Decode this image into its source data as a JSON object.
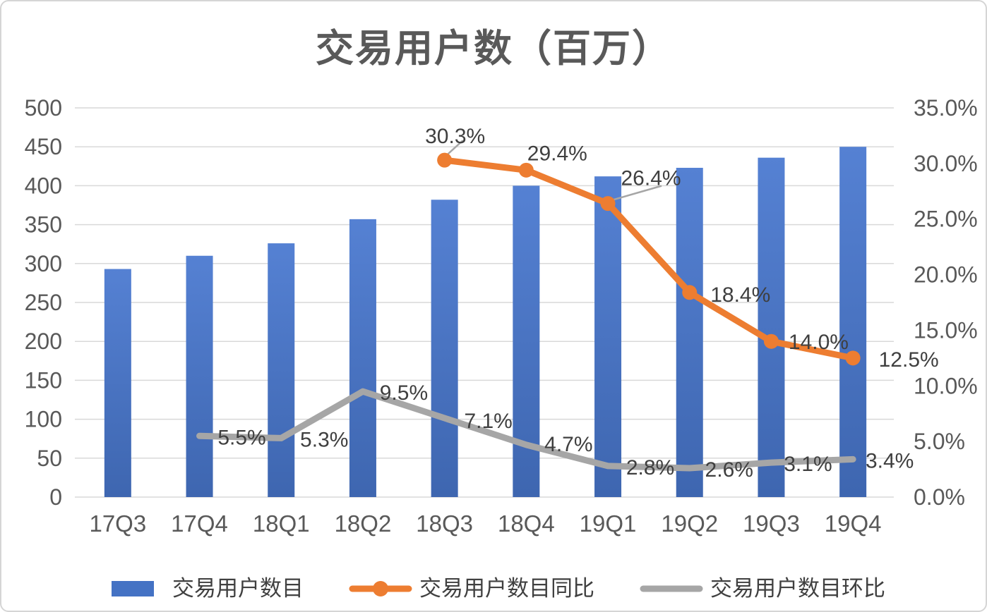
{
  "chart_data": {
    "type": "combo",
    "title": "交易用户数（百万）",
    "categories": [
      "17Q3",
      "17Q4",
      "18Q1",
      "18Q2",
      "18Q3",
      "18Q4",
      "19Q1",
      "19Q2",
      "19Q3",
      "19Q4"
    ],
    "series": [
      {
        "name": "交易用户数目",
        "type": "bar",
        "axis": "left",
        "color": "#4472C4",
        "values": [
          293,
          310,
          326,
          357,
          382,
          400,
          412,
          423,
          436,
          450
        ]
      },
      {
        "name": "交易用户数目同比",
        "type": "line",
        "axis": "right",
        "color": "#ED7D31",
        "marker": true,
        "values": [
          null,
          null,
          null,
          null,
          30.3,
          29.4,
          26.4,
          18.4,
          14.0,
          12.5
        ],
        "labels": [
          null,
          null,
          null,
          null,
          "30.3%",
          "29.4%",
          "26.4%",
          "18.4%",
          "14.0%",
          "12.5%"
        ]
      },
      {
        "name": "交易用户数目环比",
        "type": "line",
        "axis": "right",
        "color": "#A6A6A6",
        "marker": false,
        "values": [
          null,
          5.5,
          5.3,
          9.5,
          7.1,
          4.7,
          2.8,
          2.6,
          3.1,
          3.4
        ],
        "labels": [
          null,
          "5.5%",
          "5.3%",
          "9.5%",
          "7.1%",
          "4.7%",
          "2.8%",
          "2.6%",
          "3.1%",
          "3.4%"
        ]
      }
    ],
    "left_axis": {
      "min": 0,
      "max": 500,
      "step": 50,
      "ticks": [
        "500",
        "450",
        "400",
        "350",
        "300",
        "250",
        "200",
        "150",
        "100",
        "50",
        "0"
      ]
    },
    "right_axis": {
      "min": 0,
      "max": 35,
      "step": 5,
      "ticks": [
        "35.0%",
        "30.0%",
        "25.0%",
        "20.0%",
        "15.0%",
        "10.0%",
        "5.0%",
        "0.0%"
      ]
    },
    "grid": true,
    "legend_position": "bottom",
    "colors": {
      "grid": "#D9D9D9",
      "tick_text": "#595959",
      "label_text": "#3F3F3F",
      "title_text": "#595959",
      "leader_line": "#A6A6A6",
      "bar_gradient_top": "#5581D3",
      "bar_gradient_bottom": "#3E66B0"
    }
  }
}
